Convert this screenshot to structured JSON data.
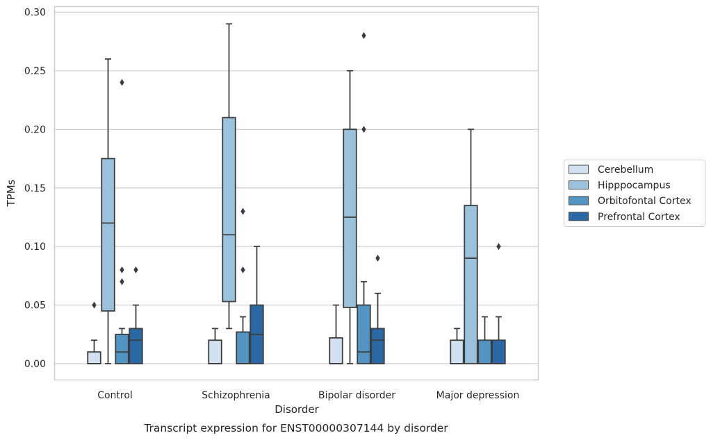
{
  "chart_data": {
    "type": "box",
    "caption": "Transcript expression for ENST00000307144 by disorder",
    "xlabel": "Disorder",
    "ylabel": "TPMs",
    "ylim": [
      -0.014,
      0.305
    ],
    "yticks": [
      "0.00",
      "0.05",
      "0.10",
      "0.15",
      "0.20",
      "0.25",
      "0.30"
    ],
    "grid": "horizontal",
    "legend_placement": "right",
    "categories": [
      "Control",
      "Schizophrenia",
      "Bipolar disorder",
      "Major depression"
    ],
    "series": [
      {
        "name": "Cerebellum",
        "color": "#d1e1f0",
        "boxes": [
          {
            "category": "Control",
            "q1": 0.0,
            "median": 0.0,
            "q3": 0.01,
            "whisker_low": 0.0,
            "whisker_high": 0.02,
            "outliers": [
              0.05
            ]
          },
          {
            "category": "Schizophrenia",
            "q1": 0.0,
            "median": 0.0,
            "q3": 0.02,
            "whisker_low": 0.0,
            "whisker_high": 0.03,
            "outliers": []
          },
          {
            "category": "Bipolar disorder",
            "q1": 0.0,
            "median": 0.0,
            "q3": 0.022,
            "whisker_low": 0.0,
            "whisker_high": 0.05,
            "outliers": []
          },
          {
            "category": "Major depression",
            "q1": 0.0,
            "median": 0.0,
            "q3": 0.02,
            "whisker_low": 0.0,
            "whisker_high": 0.03,
            "outliers": []
          }
        ]
      },
      {
        "name": "Hipppocampus",
        "color": "#9ac2dd",
        "boxes": [
          {
            "category": "Control",
            "q1": 0.045,
            "median": 0.12,
            "q3": 0.175,
            "whisker_low": 0.0,
            "whisker_high": 0.26,
            "outliers": []
          },
          {
            "category": "Schizophrenia",
            "q1": 0.053,
            "median": 0.11,
            "q3": 0.21,
            "whisker_low": 0.03,
            "whisker_high": 0.29,
            "outliers": []
          },
          {
            "category": "Bipolar disorder",
            "q1": 0.048,
            "median": 0.125,
            "q3": 0.2,
            "whisker_low": 0.0,
            "whisker_high": 0.25,
            "outliers": []
          },
          {
            "category": "Major depression",
            "q1": 0.0,
            "median": 0.09,
            "q3": 0.135,
            "whisker_low": 0.0,
            "whisker_high": 0.2,
            "outliers": []
          }
        ]
      },
      {
        "name": "Orbitofontal Cortex",
        "color": "#5295c4",
        "boxes": [
          {
            "category": "Control",
            "q1": 0.0,
            "median": 0.01,
            "q3": 0.025,
            "whisker_low": 0.0,
            "whisker_high": 0.03,
            "outliers": [
              0.24,
              0.08,
              0.07
            ]
          },
          {
            "category": "Schizophrenia",
            "q1": 0.0,
            "median": 0.0,
            "q3": 0.027,
            "whisker_low": 0.0,
            "whisker_high": 0.04,
            "outliers": [
              0.13,
              0.08
            ]
          },
          {
            "category": "Bipolar disorder",
            "q1": 0.0,
            "median": 0.01,
            "q3": 0.05,
            "whisker_low": 0.0,
            "whisker_high": 0.07,
            "outliers": [
              0.28,
              0.2
            ]
          },
          {
            "category": "Major depression",
            "q1": 0.0,
            "median": 0.0,
            "q3": 0.02,
            "whisker_low": 0.0,
            "whisker_high": 0.04,
            "outliers": []
          }
        ]
      },
      {
        "name": "Prefrontal Cortex",
        "color": "#2a69a6",
        "boxes": [
          {
            "category": "Control",
            "q1": 0.0,
            "median": 0.02,
            "q3": 0.03,
            "whisker_low": 0.0,
            "whisker_high": 0.05,
            "outliers": [
              0.08
            ]
          },
          {
            "category": "Schizophrenia",
            "q1": 0.0,
            "median": 0.025,
            "q3": 0.05,
            "whisker_low": 0.0,
            "whisker_high": 0.1,
            "outliers": []
          },
          {
            "category": "Bipolar disorder",
            "q1": 0.0,
            "median": 0.02,
            "q3": 0.03,
            "whisker_low": 0.0,
            "whisker_high": 0.06,
            "outliers": [
              0.09
            ]
          },
          {
            "category": "Major depression",
            "q1": 0.0,
            "median": 0.0,
            "q3": 0.02,
            "whisker_low": 0.0,
            "whisker_high": 0.04,
            "outliers": [
              0.1
            ]
          }
        ]
      }
    ]
  }
}
